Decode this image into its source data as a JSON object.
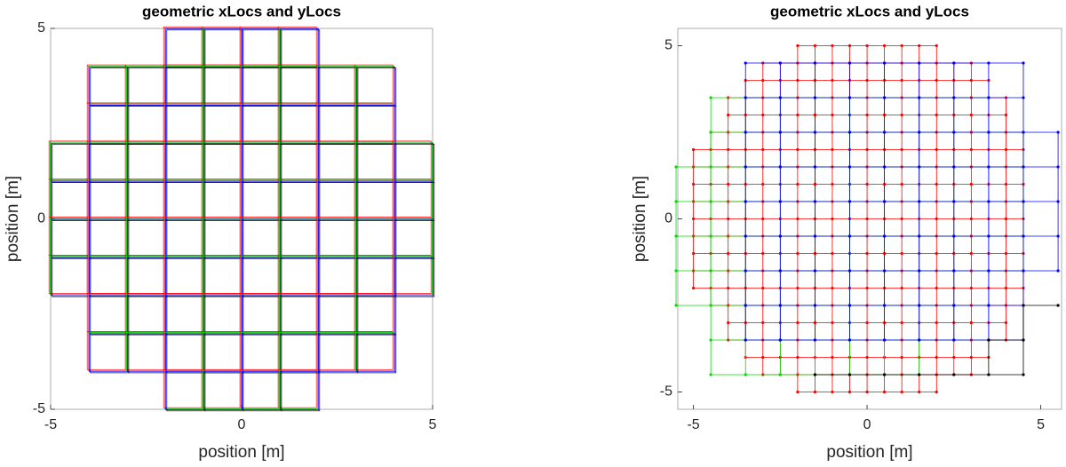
{
  "chart_data": [
    {
      "type": "cells",
      "title": "geometric xLocs and yLocs",
      "xlabel": "position [m]",
      "ylabel": "position [m]",
      "xlim": [
        -5,
        5
      ],
      "ylim": [
        -5,
        5
      ],
      "xticks": [
        -5,
        0,
        5
      ],
      "yticks": [
        -5,
        0,
        5
      ],
      "colors": [
        "#ff0000",
        "#00cc00",
        "#0000ff",
        "#000000"
      ],
      "rows": [
        [
          4,
          -2,
          2
        ],
        [
          3,
          -4,
          4
        ],
        [
          2,
          -4,
          4
        ],
        [
          1,
          -5,
          5
        ],
        [
          0,
          -5,
          5
        ],
        [
          -1,
          -5,
          5
        ],
        [
          -2,
          -5,
          5
        ],
        [
          -3,
          -4,
          4
        ],
        [
          -4,
          -4,
          4
        ],
        [
          -5,
          -2,
          2
        ]
      ]
    },
    {
      "type": "lattice",
      "title": "geometric xLocs and yLocs",
      "xlabel": "position [m]",
      "ylabel": "position [m]",
      "xlim": [
        -5.45,
        5.6
      ],
      "ylim": [
        -5.5,
        5.5
      ],
      "xticks": [
        -5,
        0,
        5
      ],
      "yticks": [
        -5,
        0,
        5
      ],
      "series": [
        {
          "color": "#ff0000",
          "step": 0.5,
          "rows": [
            [
              5,
              -2,
              2
            ],
            [
              4.5,
              -3,
              3
            ],
            [
              4,
              -3.5,
              3.5
            ],
            [
              3.5,
              -4,
              4
            ],
            [
              3,
              -4,
              4
            ],
            [
              2.5,
              -4.5,
              4.5
            ],
            [
              2,
              -5,
              4.5
            ],
            [
              1.5,
              -5,
              4.5
            ],
            [
              1,
              -5,
              4.5
            ],
            [
              0.5,
              -5,
              4.5
            ],
            [
              0,
              -5,
              4.5
            ],
            [
              -0.5,
              -5,
              4.5
            ],
            [
              -1,
              -5,
              4.5
            ],
            [
              -1.5,
              -5,
              4.5
            ],
            [
              -2,
              -5,
              4.5
            ],
            [
              -2.5,
              -4.5,
              4.5
            ],
            [
              -3,
              -4,
              4
            ],
            [
              -3.5,
              -4,
              4
            ],
            [
              -4,
              -3.5,
              3.5
            ],
            [
              -4.5,
              -3,
              3
            ],
            [
              -5,
              -2,
              2
            ]
          ]
        },
        {
          "color": "#00dd00",
          "step": 1,
          "rows": [
            [
              3.5,
              -4.5,
              3.5
            ],
            [
              2.5,
              -4.5,
              4.5
            ],
            [
              1.5,
              -5.5,
              4.5
            ],
            [
              0.5,
              -5.5,
              4.5
            ],
            [
              -0.5,
              -5.5,
              4.5
            ],
            [
              -1.5,
              -5.5,
              4.5
            ],
            [
              -2.5,
              -5.5,
              3.5
            ],
            [
              -3.5,
              -4.5,
              3.5
            ],
            [
              -4.5,
              -4.5,
              1.5
            ]
          ]
        },
        {
          "color": "#0000ff",
          "step": 1,
          "rows": [
            [
              4.5,
              -3.5,
              4.5
            ],
            [
              3.5,
              -3.5,
              4.5
            ],
            [
              2.5,
              -3.5,
              5.5
            ],
            [
              1.5,
              -3.5,
              5.5
            ],
            [
              0.5,
              -3.5,
              5.5
            ],
            [
              -0.5,
              -3.5,
              5.5
            ],
            [
              -1.5,
              -3.5,
              5.5
            ],
            [
              -2.5,
              -3.5,
              4.5
            ],
            [
              -3.5,
              -3.5,
              4.5
            ]
          ]
        },
        {
          "color": "#000000",
          "step": 1,
          "rows": [
            [
              -2.5,
              4.5,
              5.5
            ],
            [
              -3.5,
              3.5,
              4.5
            ],
            [
              -4.5,
              -1.5,
              4.5
            ]
          ]
        }
      ]
    }
  ]
}
